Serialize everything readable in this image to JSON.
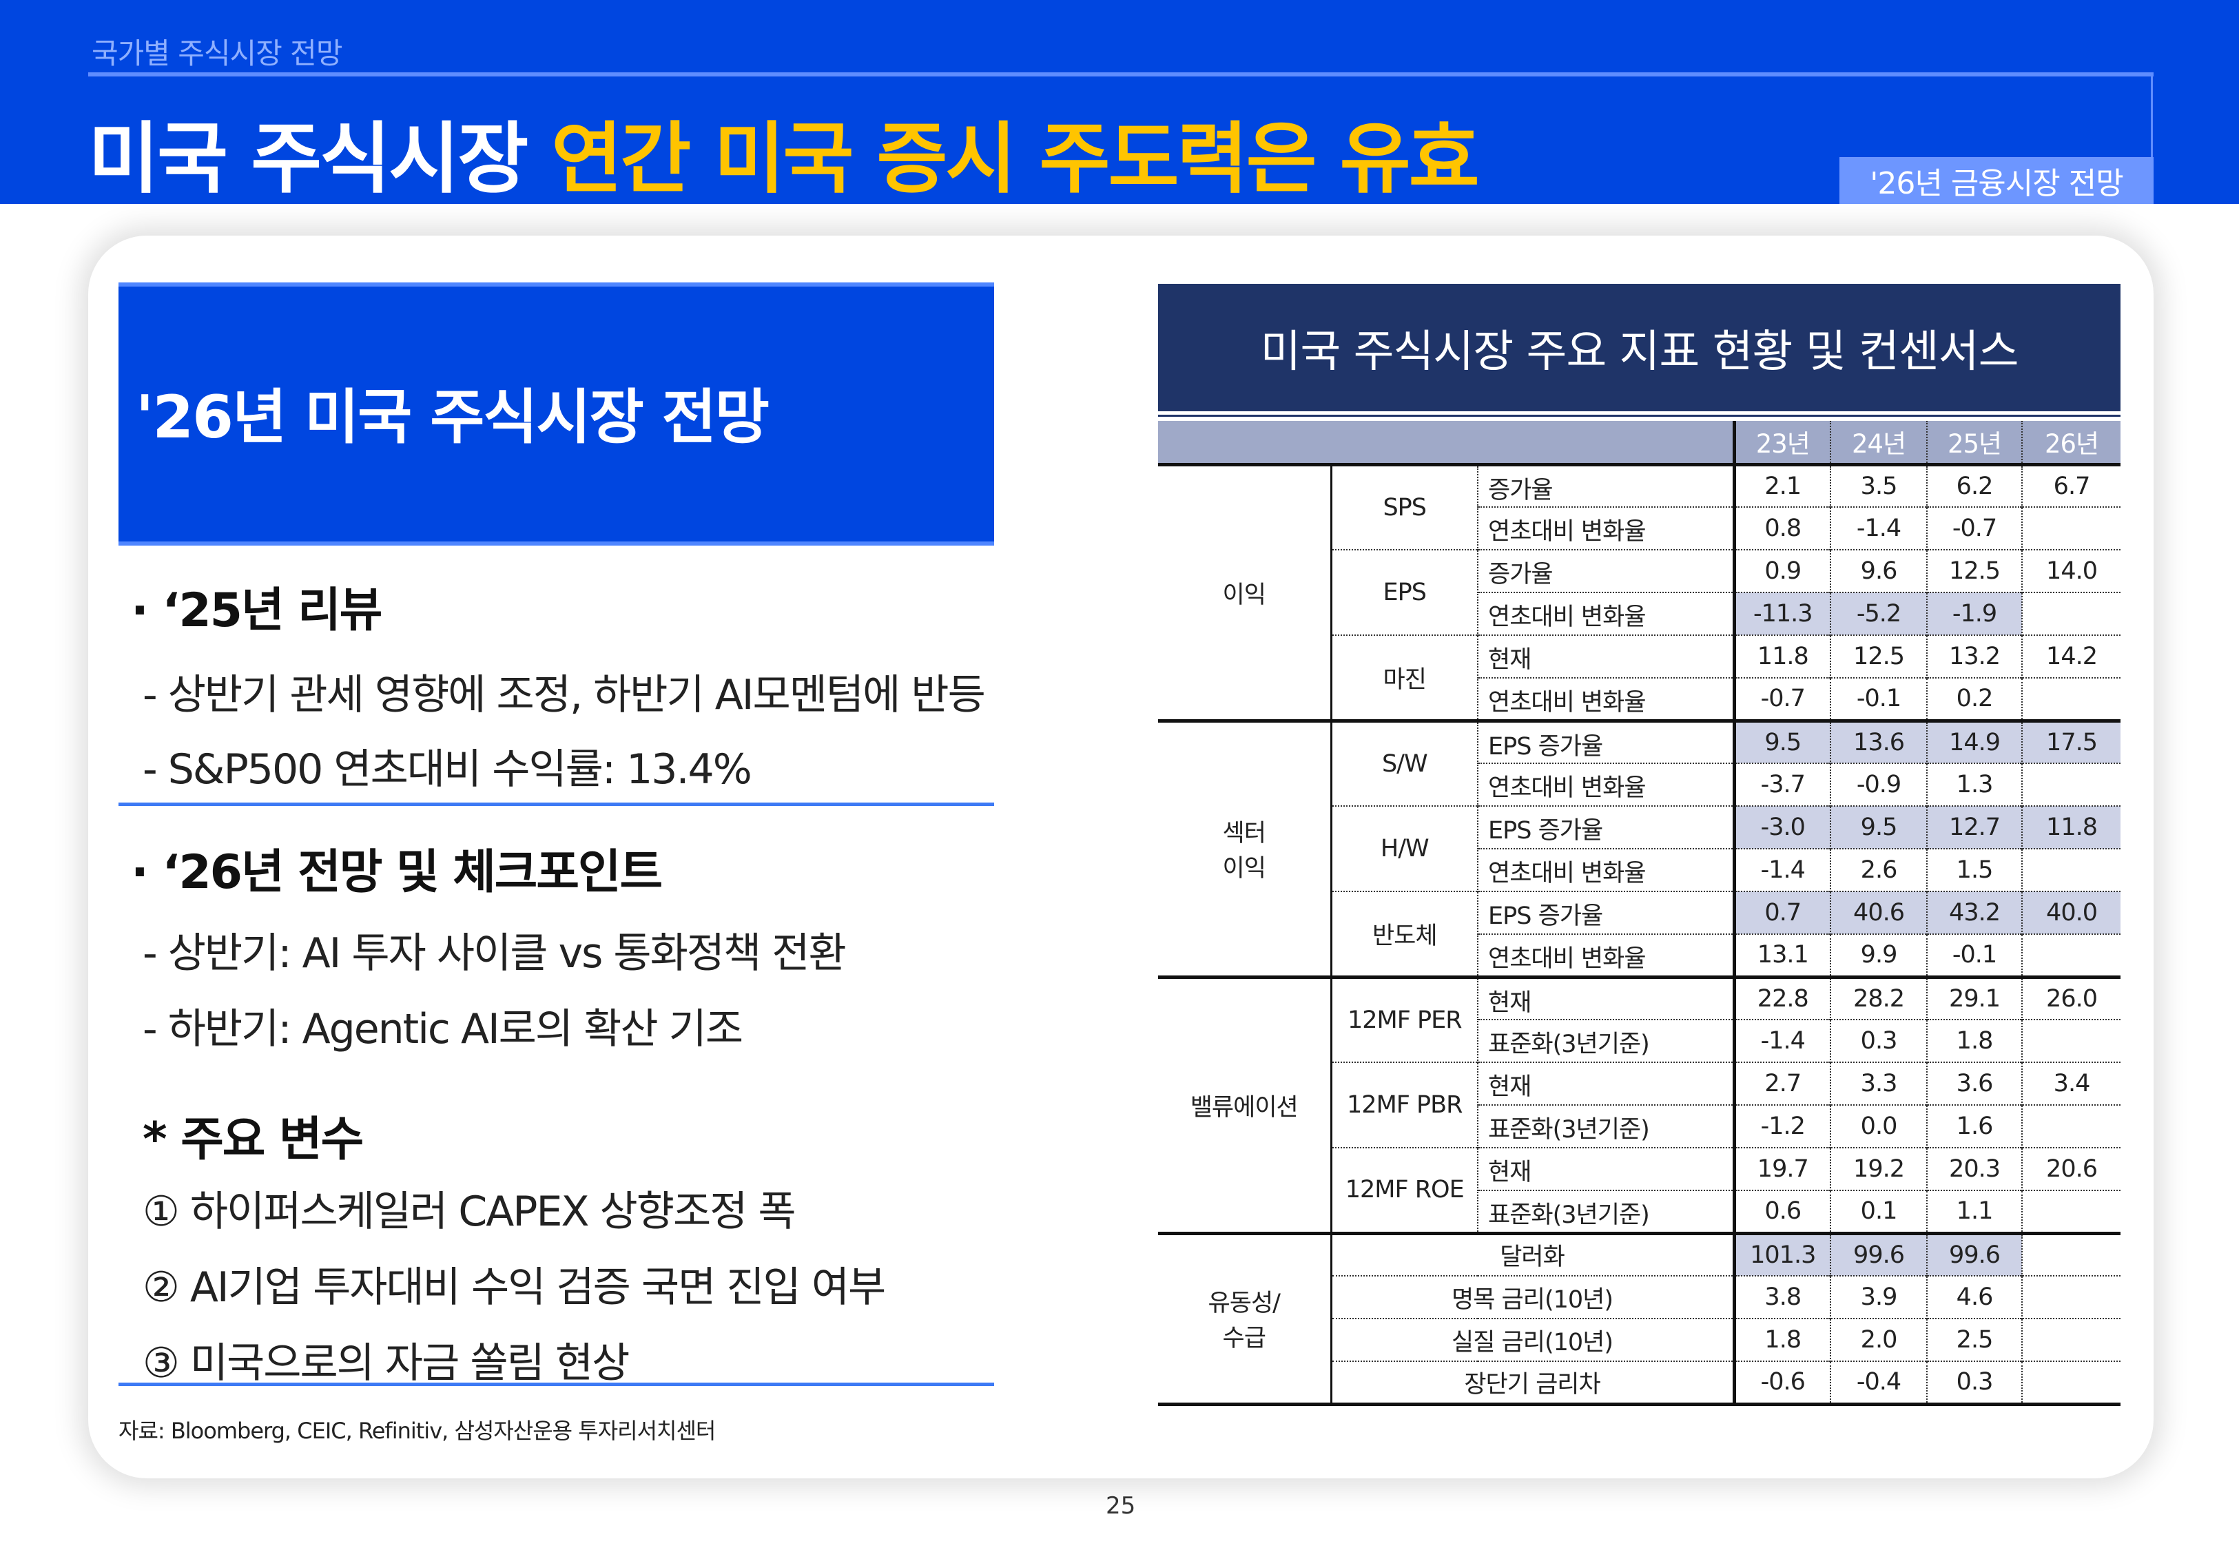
{
  "header": {
    "breadcrumb": "국가별 주식시장 전망",
    "title_white": "미국 주식시장",
    "title_yellow": "연간 미국 증시 주도력은 유효",
    "badge": "'26년 금융시장 전망"
  },
  "colors": {
    "header_blue": "#0046e0",
    "title_yellow": "#ffc400",
    "table_title": "#1f3468",
    "table_header": "#9fa9c8",
    "highlight": "#cdd2e6"
  },
  "left": {
    "box_title": "'26년 미국 주식시장 전망",
    "review_heading": "· ‘25년 리뷰",
    "review_items": [
      "- 상반기 관세 영향에 조정, 하반기 AI모멘텀에 반등",
      "- S&P500 연초대비 수익률: 13.4%"
    ],
    "outlook_heading": "· ‘26년 전망 및 체크포인트",
    "outlook_items": [
      "- 상반기: AI 투자 사이클  vs 통화정책 전환",
      "- 하반기: Agentic AI로의 확산 기조"
    ],
    "variables_heading": "* 주요 변수",
    "variables": [
      "① 하이퍼스케일러 CAPEX 상향조정 폭",
      "② AI기업 투자대비 수익 검증 국면 진입 여부",
      "③ 미국으로의 자금 쏠림 현상"
    ],
    "source": "자료: Bloomberg, CEIC, Refinitiv, 삼성자산운용 투자리서치센터"
  },
  "page_number": "25",
  "table": {
    "title": "미국 주식시장 주요 지표 현황 및 컨센서스",
    "years": [
      "23년",
      "24년",
      "25년",
      "26년"
    ],
    "groups": [
      {
        "label": "이익",
        "subgroups": [
          {
            "label": "SPS",
            "rows": [
              {
                "label": "증가율",
                "values": [
                  "2.1",
                  "3.5",
                  "6.2",
                  "6.7"
                ]
              },
              {
                "label": "연초대비 변화율",
                "values": [
                  "0.8",
                  "-1.4",
                  "-0.7",
                  ""
                ]
              }
            ]
          },
          {
            "label": "EPS",
            "rows": [
              {
                "label": "증가율",
                "values": [
                  "0.9",
                  "9.6",
                  "12.5",
                  "14.0"
                ]
              },
              {
                "label": "연초대비 변화율",
                "values": [
                  "-11.3",
                  "-5.2",
                  "-1.9",
                  ""
                ],
                "highlight": true
              }
            ]
          },
          {
            "label": "마진",
            "rows": [
              {
                "label": "현재",
                "values": [
                  "11.8",
                  "12.5",
                  "13.2",
                  "14.2"
                ]
              },
              {
                "label": "연초대비 변화율",
                "values": [
                  "-0.7",
                  "-0.1",
                  "0.2",
                  ""
                ]
              }
            ]
          }
        ]
      },
      {
        "label": "섹터\n이익",
        "subgroups": [
          {
            "label": "S/W",
            "rows": [
              {
                "label": "EPS 증가율",
                "values": [
                  "9.5",
                  "13.6",
                  "14.9",
                  "17.5"
                ],
                "highlight": true
              },
              {
                "label": "연초대비 변화율",
                "values": [
                  "-3.7",
                  "-0.9",
                  "1.3",
                  ""
                ]
              }
            ]
          },
          {
            "label": "H/W",
            "rows": [
              {
                "label": "EPS 증가율",
                "values": [
                  "-3.0",
                  "9.5",
                  "12.7",
                  "11.8"
                ],
                "highlight": true
              },
              {
                "label": "연초대비 변화율",
                "values": [
                  "-1.4",
                  "2.6",
                  "1.5",
                  ""
                ]
              }
            ]
          },
          {
            "label": "반도체",
            "rows": [
              {
                "label": "EPS 증가율",
                "values": [
                  "0.7",
                  "40.6",
                  "43.2",
                  "40.0"
                ],
                "highlight": true
              },
              {
                "label": "연초대비 변화율",
                "values": [
                  "13.1",
                  "9.9",
                  "-0.1",
                  ""
                ]
              }
            ]
          }
        ]
      },
      {
        "label": "밸류에이션",
        "subgroups": [
          {
            "label": "12MF PER",
            "rows": [
              {
                "label": "현재",
                "values": [
                  "22.8",
                  "28.2",
                  "29.1",
                  "26.0"
                ]
              },
              {
                "label": "표준화(3년기준)",
                "values": [
                  "-1.4",
                  "0.3",
                  "1.8",
                  ""
                ]
              }
            ]
          },
          {
            "label": "12MF PBR",
            "rows": [
              {
                "label": "현재",
                "values": [
                  "2.7",
                  "3.3",
                  "3.6",
                  "3.4"
                ]
              },
              {
                "label": "표준화(3년기준)",
                "values": [
                  "-1.2",
                  "0.0",
                  "1.6",
                  ""
                ]
              }
            ]
          },
          {
            "label": "12MF ROE",
            "rows": [
              {
                "label": "현재",
                "values": [
                  "19.7",
                  "19.2",
                  "20.3",
                  "20.6"
                ]
              },
              {
                "label": "표준화(3년기준)",
                "values": [
                  "0.6",
                  "0.1",
                  "1.1",
                  ""
                ]
              }
            ]
          }
        ]
      },
      {
        "label": "유동성/\n수급",
        "rows": [
          {
            "label": "달러화",
            "values": [
              "101.3",
              "99.6",
              "99.6",
              ""
            ],
            "highlight": true
          },
          {
            "label": "명목 금리(10년)",
            "values": [
              "3.8",
              "3.9",
              "4.6",
              ""
            ]
          },
          {
            "label": "실질 금리(10년)",
            "values": [
              "1.8",
              "2.0",
              "2.5",
              ""
            ]
          },
          {
            "label": "장단기 금리차",
            "values": [
              "-0.6",
              "-0.4",
              "0.3",
              ""
            ]
          }
        ]
      }
    ]
  }
}
